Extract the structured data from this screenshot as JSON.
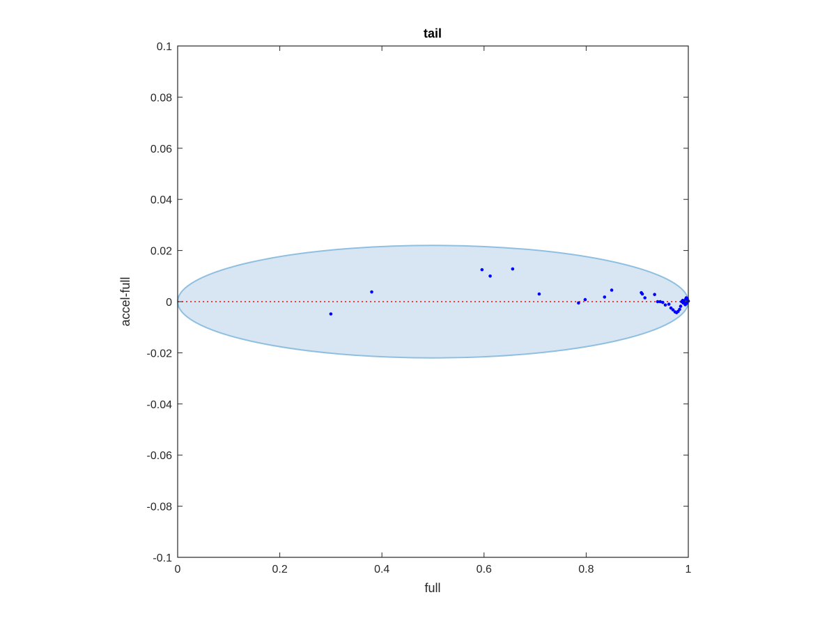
{
  "chart_data": {
    "type": "scatter",
    "title": "tail",
    "xlabel": "full",
    "ylabel": "accel-full",
    "xlim": [
      0,
      1
    ],
    "ylim": [
      -0.1,
      0.1
    ],
    "xticks": [
      0,
      0.2,
      0.4,
      0.6,
      0.8,
      1
    ],
    "xtick_labels": [
      "0",
      "0.2",
      "0.4",
      "0.6",
      "0.8",
      "1"
    ],
    "yticks": [
      -0.1,
      -0.08,
      -0.06,
      -0.04,
      -0.02,
      0,
      0.02,
      0.04,
      0.06,
      0.08,
      0.1
    ],
    "ytick_labels": [
      "-0.1",
      "-0.08",
      "-0.06",
      "-0.04",
      "-0.02",
      "0",
      "0.02",
      "0.04",
      "0.06",
      "0.08",
      "0.1"
    ],
    "grid": false,
    "reference_line": {
      "y": 0,
      "style": "dotted",
      "color": "#ff0000"
    },
    "ellipse": {
      "center_x": 0.5,
      "center_y": 0,
      "half_width_x": 0.5,
      "half_height_y": 0.022,
      "fill": "#d8e6f3",
      "stroke": "#8fbfe0"
    },
    "points": [
      {
        "x": 0.3,
        "y": -0.0048
      },
      {
        "x": 0.38,
        "y": 0.0038
      },
      {
        "x": 0.596,
        "y": 0.0125
      },
      {
        "x": 0.612,
        "y": 0.01
      },
      {
        "x": 0.656,
        "y": 0.0128
      },
      {
        "x": 0.708,
        "y": 0.003
      },
      {
        "x": 0.785,
        "y": -0.0005
      },
      {
        "x": 0.798,
        "y": 0.0008
      },
      {
        "x": 0.836,
        "y": 0.0018
      },
      {
        "x": 0.85,
        "y": 0.0045
      },
      {
        "x": 0.908,
        "y": 0.0035
      },
      {
        "x": 0.91,
        "y": 0.003
      },
      {
        "x": 0.915,
        "y": 0.0015
      },
      {
        "x": 0.934,
        "y": 0.0028
      },
      {
        "x": 0.94,
        "y": 0.0
      },
      {
        "x": 0.945,
        "y": 0.0
      },
      {
        "x": 0.95,
        "y": -0.0003
      },
      {
        "x": 0.955,
        "y": -0.0013
      },
      {
        "x": 0.962,
        "y": -0.001
      },
      {
        "x": 0.966,
        "y": -0.0025
      },
      {
        "x": 0.97,
        "y": -0.0032
      },
      {
        "x": 0.974,
        "y": -0.004
      },
      {
        "x": 0.977,
        "y": -0.0043
      },
      {
        "x": 0.98,
        "y": -0.0038
      },
      {
        "x": 0.983,
        "y": -0.003
      },
      {
        "x": 0.985,
        "y": -0.0018
      },
      {
        "x": 0.987,
        "y": 0.0
      },
      {
        "x": 0.989,
        "y": 0.0005
      },
      {
        "x": 0.99,
        "y": -0.0005
      },
      {
        "x": 0.992,
        "y": 0.0003
      },
      {
        "x": 0.994,
        "y": -0.0012
      },
      {
        "x": 0.995,
        "y": 0.001
      },
      {
        "x": 0.996,
        "y": 0.0015
      },
      {
        "x": 0.997,
        "y": -0.0006
      },
      {
        "x": 0.998,
        "y": 0.0012
      },
      {
        "x": 0.999,
        "y": 0.0004
      },
      {
        "x": 1.0,
        "y": 0.0002
      },
      {
        "x": 0.993,
        "y": -0.0008
      }
    ],
    "point_color": "#0000ff"
  }
}
